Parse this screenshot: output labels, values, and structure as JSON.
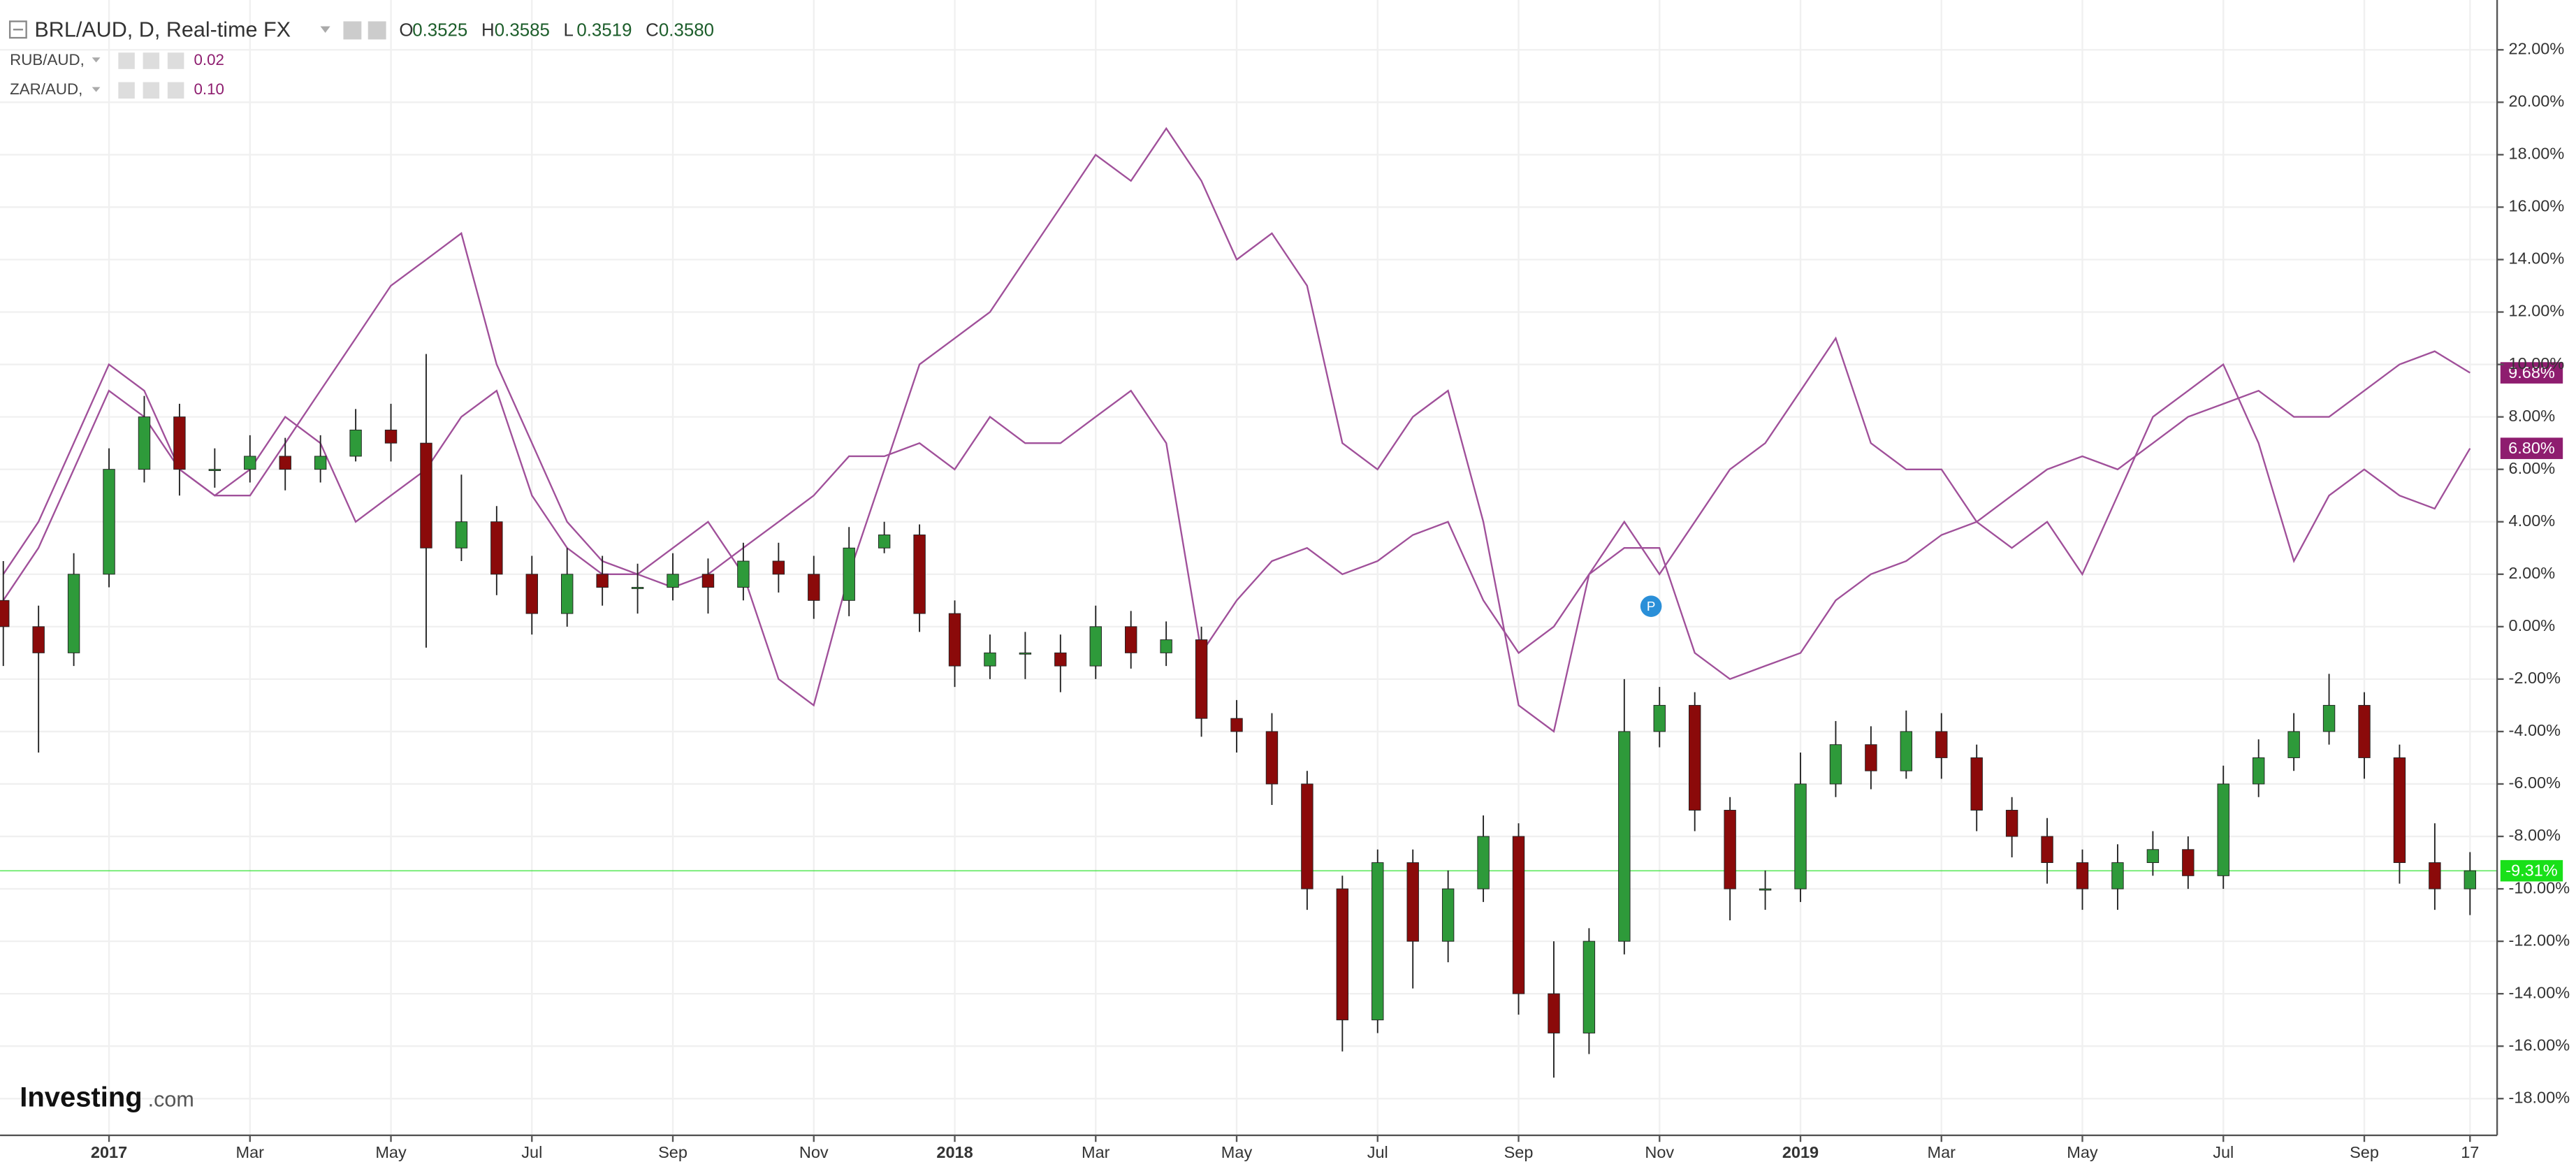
{
  "chart_data": {
    "type": "candlestick",
    "title": "BRL/AUD, D, Real-time FX",
    "ohlc": [
      {
        "label": "O",
        "value": "0.3525"
      },
      {
        "label": "H",
        "value": "0.3585"
      },
      {
        "label": "L",
        "value": "0.3519"
      },
      {
        "label": "C",
        "value": "0.3580"
      }
    ],
    "watermark": {
      "brand": "Investing",
      "suffix": ".com"
    },
    "marker": "P",
    "categories": [
      null,
      null,
      null,
      "2017",
      null,
      null,
      null,
      "Mar",
      null,
      null,
      null,
      "May",
      null,
      null,
      null,
      "Jul",
      null,
      null,
      null,
      "Sep",
      null,
      null,
      null,
      "Nov",
      null,
      null,
      null,
      "2018",
      null,
      null,
      null,
      "Mar",
      null,
      null,
      null,
      "May",
      null,
      null,
      null,
      "Jul",
      null,
      null,
      null,
      "Sep",
      null,
      null,
      null,
      "Nov",
      null,
      null,
      null,
      "2019",
      null,
      null,
      null,
      "Mar",
      null,
      null,
      null,
      "May",
      null,
      null,
      null,
      "Jul",
      null,
      null,
      null,
      "Sep",
      null,
      null,
      "17"
    ],
    "candles": {
      "up_color": "#2e9a3a",
      "down_color": "#8b0a0a",
      "last_value_label": "-9.31%",
      "last_color": "#19e019",
      "open": [
        1,
        0,
        -1,
        2,
        6,
        8,
        6,
        6,
        6.5,
        6,
        6.5,
        7.5,
        7,
        3,
        4,
        2,
        0.5,
        2,
        1.5,
        1.5,
        2,
        1.5,
        2.5,
        2,
        1,
        3,
        3.5,
        0.5,
        -1.5,
        -1,
        -1,
        -1.5,
        0,
        -1,
        -0.5,
        -3.5,
        -4,
        -6,
        -10,
        -15,
        -9,
        -12,
        -10,
        -8,
        -14,
        -15.5,
        -12,
        -4,
        -3,
        -7,
        -10,
        -10,
        -6,
        -4.5,
        -5.5,
        -4,
        -5,
        -7,
        -8,
        -9,
        -10,
        -9,
        -8.5,
        -9.5,
        -6,
        -5,
        -4,
        -3,
        -5,
        -9,
        -10
      ],
      "high": [
        2.5,
        0.8,
        2.8,
        6.8,
        8.8,
        8.5,
        6.8,
        7.3,
        7.2,
        7.3,
        8.3,
        8.5,
        10.4,
        5.8,
        4.6,
        2.7,
        3,
        2.7,
        2.4,
        2.8,
        2.6,
        3.2,
        3.2,
        2.7,
        3.8,
        4,
        3.9,
        1,
        -0.3,
        -0.2,
        -0.3,
        0.8,
        0.6,
        0.2,
        0,
        -2.8,
        -3.3,
        -5.5,
        -9.5,
        -8.5,
        -8.5,
        -9.3,
        -7.2,
        -7.5,
        -12,
        -11.5,
        -2,
        -2.3,
        -2.5,
        -6.5,
        -9.3,
        -4.8,
        -3.6,
        -3.8,
        -3.2,
        -3.3,
        -4.5,
        -6.5,
        -7.3,
        -8.5,
        -8.3,
        -7.8,
        -8,
        -5.3,
        -4.3,
        -3.3,
        -1.8,
        -2.5,
        -4.5,
        -7.5,
        -8.6
      ],
      "low": [
        -1.5,
        -4.8,
        -1.5,
        1.5,
        5.5,
        5,
        5.3,
        5.5,
        5.2,
        5.5,
        6.3,
        6.3,
        -0.8,
        2.5,
        1.2,
        -0.3,
        0,
        0.8,
        0.5,
        1,
        0.5,
        1,
        1.3,
        0.3,
        0.4,
        2.8,
        -0.2,
        -2.3,
        -2,
        -2,
        -2.5,
        -2,
        -1.6,
        -1.5,
        -4.2,
        -4.8,
        -6.8,
        -10.8,
        -16.2,
        -15.5,
        -13.8,
        -12.8,
        -10.5,
        -14.8,
        -17.2,
        -16.3,
        -12.5,
        -4.6,
        -7.8,
        -11.2,
        -10.8,
        -10.5,
        -6.5,
        -6.2,
        -5.8,
        -5.8,
        -7.8,
        -8.8,
        -9.8,
        -10.8,
        -10.8,
        -9.5,
        -10,
        -10,
        -6.5,
        -5.5,
        -4.5,
        -5.8,
        -9.8,
        -10.8,
        -11
      ],
      "close": [
        0,
        -1,
        2,
        6,
        8,
        6,
        6,
        6.5,
        6,
        6.5,
        7.5,
        7,
        3,
        4,
        2,
        0.5,
        2,
        1.5,
        1.5,
        2,
        1.5,
        2.5,
        2,
        1,
        3,
        3.5,
        0.5,
        -1.5,
        -1,
        -1,
        -1.5,
        0,
        -1,
        -0.5,
        -3.5,
        -4,
        -6,
        -10,
        -15,
        -9,
        -12,
        -10,
        -8,
        -14,
        -15.5,
        -12,
        -4,
        -3,
        -7,
        -10,
        -10,
        -6,
        -4.5,
        -5.5,
        -4,
        -5,
        -7,
        -8,
        -9,
        -10,
        -9,
        -8.5,
        -9.5,
        -6,
        -5,
        -4,
        -3,
        -5,
        -9,
        -10,
        -9.31
      ]
    },
    "series": [
      {
        "name": "RUB/AUD,",
        "legend_value": "0.02",
        "color": "#a0509a",
        "tag_color": "#8e1d6f",
        "last_value_label": "9.68%",
        "values": [
          1,
          3,
          6,
          9,
          8,
          6,
          5,
          5,
          7,
          9,
          11,
          13,
          14,
          15,
          10,
          7,
          4,
          2.5,
          2,
          1.5,
          2,
          3,
          4,
          5,
          6.5,
          6.5,
          7,
          6,
          8,
          7,
          7,
          8,
          9,
          7,
          -1,
          1,
          2.5,
          3,
          2,
          2.5,
          3.5,
          4,
          1,
          -1,
          0,
          2,
          3,
          3,
          -1,
          -2,
          -1.5,
          -1,
          1,
          2,
          2.5,
          3.5,
          4,
          5,
          6,
          6.5,
          6,
          7,
          8,
          8.5,
          9,
          8,
          8,
          9,
          10,
          10.5,
          9.68
        ]
      },
      {
        "name": "ZAR/AUD,",
        "legend_value": "0.10",
        "color": "#a0509a",
        "tag_color": "#8e1d6f",
        "last_value_label": "6.80%",
        "values": [
          2,
          4,
          7,
          10,
          9,
          6,
          5,
          6,
          8,
          7,
          4,
          5,
          6,
          8,
          9,
          5,
          3,
          2,
          2,
          3,
          4,
          2,
          -2,
          -3,
          2,
          6,
          10,
          11,
          12,
          14,
          16,
          18,
          17,
          19,
          17,
          14,
          15,
          13,
          7,
          6,
          8,
          9,
          4,
          -3,
          -4,
          2,
          4,
          2,
          4,
          6,
          7,
          9,
          11,
          7,
          6,
          6,
          4,
          3,
          4,
          2,
          5,
          8,
          9,
          10,
          7,
          2.5,
          5,
          6,
          5,
          4.5,
          6.8
        ]
      }
    ],
    "ylim": [
      -19.4,
      23.9
    ],
    "yticks": [
      {
        "value": 22,
        "label": "22.00%"
      },
      {
        "value": 20,
        "label": "20.00%"
      },
      {
        "value": 18,
        "label": "18.00%"
      },
      {
        "value": 16,
        "label": "16.00%"
      },
      {
        "value": 14,
        "label": "14.00%"
      },
      {
        "value": 12,
        "label": "12.00%"
      },
      {
        "value": 10,
        "label": "10.00%"
      },
      {
        "value": 8,
        "label": "8.00%"
      },
      {
        "value": 6,
        "label": "6.00%"
      },
      {
        "value": 4,
        "label": "4.00%"
      },
      {
        "value": 2,
        "label": "2.00%"
      },
      {
        "value": 0,
        "label": "0.00%"
      },
      {
        "value": -2,
        "label": "-2.00%"
      },
      {
        "value": -4,
        "label": "-4.00%"
      },
      {
        "value": -6,
        "label": "-6.00%"
      },
      {
        "value": -8,
        "label": "-8.00%"
      },
      {
        "value": -10,
        "label": "-10.00%"
      },
      {
        "value": -12,
        "label": "-12.00%"
      },
      {
        "value": -14,
        "label": "-14.00%"
      },
      {
        "value": -16,
        "label": "-16.00%"
      },
      {
        "value": -18,
        "label": "-18.00%"
      }
    ],
    "grid": true
  }
}
